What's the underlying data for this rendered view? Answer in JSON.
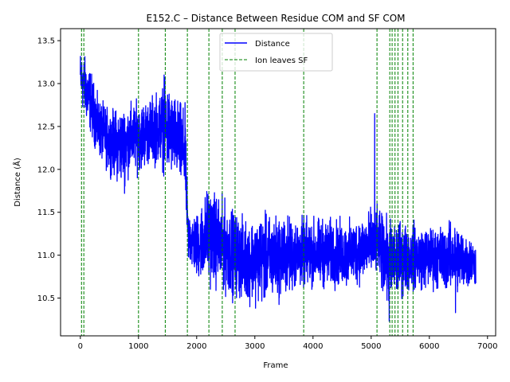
{
  "chart_data": {
    "type": "line",
    "title": "E152.C – Distance Between Residue COM and SF COM",
    "xlabel": "Frame",
    "ylabel": "Distance (Å)",
    "xlim": [
      -340,
      7140
    ],
    "ylim": [
      10.06,
      13.64
    ],
    "xticks": [
      0,
      1000,
      2000,
      3000,
      4000,
      5000,
      6000,
      7000
    ],
    "yticks": [
      10.5,
      11.0,
      11.5,
      12.0,
      12.5,
      13.0,
      13.5
    ],
    "x_tick_labels": [
      "0",
      "1000",
      "2000",
      "3000",
      "4000",
      "5000",
      "6000",
      "7000"
    ],
    "y_tick_labels": [
      "10.5",
      "11.0",
      "11.5",
      "12.0",
      "12.5",
      "13.0",
      "13.5"
    ],
    "grid": false,
    "legend_position": "top-center",
    "series": [
      {
        "name": "Distance",
        "color": "#0000ff",
        "style": "solid",
        "frames": 6800,
        "envelope": [
          {
            "x": 0,
            "low": 12.7,
            "high": 13.45
          },
          {
            "x": 150,
            "low": 12.4,
            "high": 13.3
          },
          {
            "x": 300,
            "low": 12.1,
            "high": 12.9
          },
          {
            "x": 500,
            "low": 11.9,
            "high": 12.75
          },
          {
            "x": 700,
            "low": 11.75,
            "high": 12.8
          },
          {
            "x": 900,
            "low": 11.9,
            "high": 12.85
          },
          {
            "x": 1000,
            "low": 11.9,
            "high": 12.85
          },
          {
            "x": 1200,
            "low": 12.0,
            "high": 12.9
          },
          {
            "x": 1400,
            "low": 11.95,
            "high": 13.05
          },
          {
            "x": 1500,
            "low": 11.8,
            "high": 13.1
          },
          {
            "x": 1600,
            "low": 11.85,
            "high": 12.95
          },
          {
            "x": 1800,
            "low": 11.6,
            "high": 12.8
          },
          {
            "x": 1850,
            "low": 10.85,
            "high": 11.6
          },
          {
            "x": 2000,
            "low": 10.65,
            "high": 11.55
          },
          {
            "x": 2200,
            "low": 10.6,
            "high": 11.9
          },
          {
            "x": 2500,
            "low": 10.45,
            "high": 11.7
          },
          {
            "x": 2800,
            "low": 10.4,
            "high": 11.5
          },
          {
            "x": 3100,
            "low": 10.35,
            "high": 11.55
          },
          {
            "x": 3400,
            "low": 10.4,
            "high": 11.55
          },
          {
            "x": 3800,
            "low": 10.55,
            "high": 11.5
          },
          {
            "x": 4200,
            "low": 10.55,
            "high": 11.5
          },
          {
            "x": 4600,
            "low": 10.55,
            "high": 11.45
          },
          {
            "x": 5000,
            "low": 10.65,
            "high": 11.6
          },
          {
            "x": 5100,
            "low": 10.7,
            "high": 11.6
          },
          {
            "x": 5300,
            "low": 10.3,
            "high": 11.5
          },
          {
            "x": 5600,
            "low": 10.5,
            "high": 11.45
          },
          {
            "x": 6000,
            "low": 10.55,
            "high": 11.4
          },
          {
            "x": 6500,
            "low": 10.5,
            "high": 11.45
          },
          {
            "x": 6800,
            "low": 10.6,
            "high": 11.2
          }
        ],
        "spikes": [
          {
            "x": 5060,
            "y": 12.65
          },
          {
            "x": 5310,
            "y": 10.23
          },
          {
            "x": 6450,
            "y": 10.33
          },
          {
            "x": 760,
            "y": 11.72
          },
          {
            "x": 1440,
            "y": 13.1
          }
        ]
      },
      {
        "name": "Ion leaves SF",
        "color": "#008000",
        "style": "dashed",
        "x": [
          20,
          60,
          1000,
          1460,
          1840,
          2210,
          2440,
          2660,
          3840,
          5100,
          5320,
          5360,
          5410,
          5460,
          5540,
          5630,
          5720
        ]
      }
    ]
  }
}
